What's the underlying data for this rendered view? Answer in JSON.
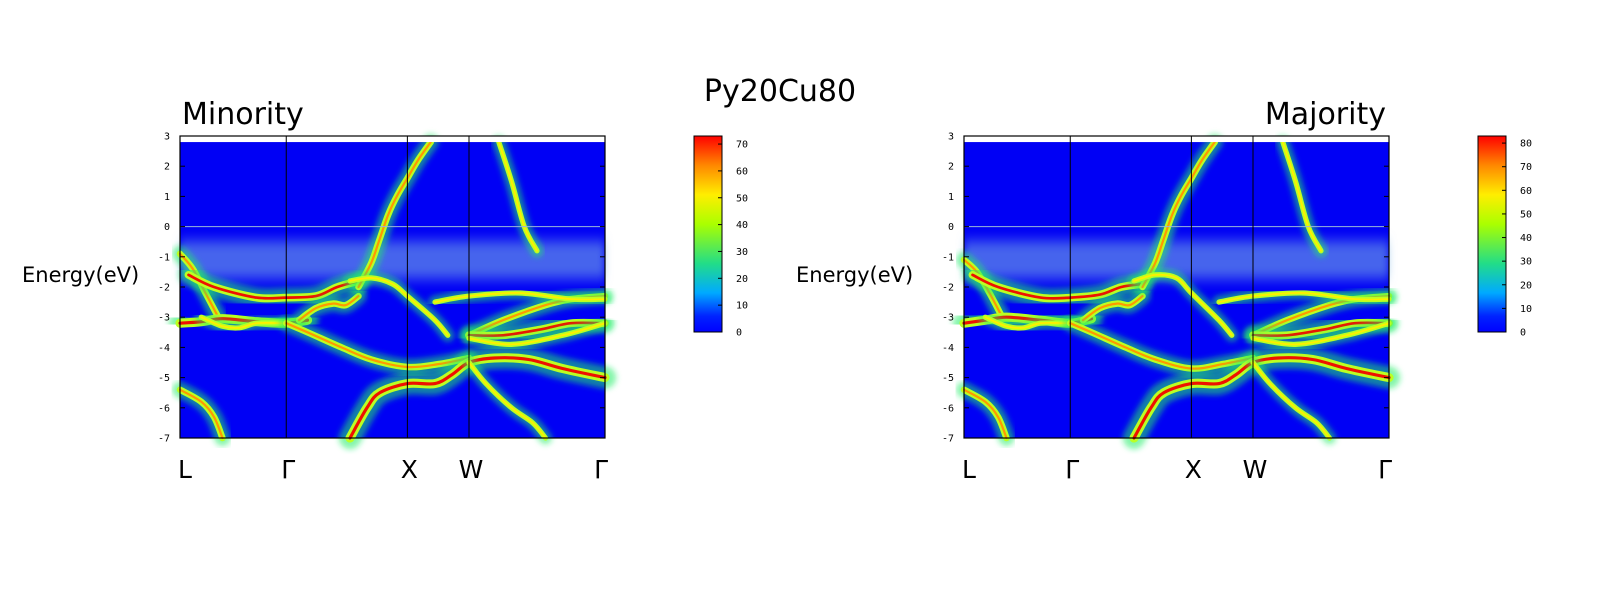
{
  "figure": {
    "title": "Py20Cu80"
  },
  "chart_data": [
    {
      "type": "heatmap",
      "title": "Minority",
      "title_align": "left",
      "ylabel": "Energy(eV)",
      "ylim": [
        -7,
        3
      ],
      "yticks": [
        "3",
        "2",
        "1",
        "0",
        "-1",
        "-2",
        "-3",
        "-4",
        "-5",
        "-6",
        "-7"
      ],
      "x_labels": [
        "L",
        "Γ",
        "X",
        "W",
        "Γ"
      ],
      "x_label_positions": [
        0,
        0.25,
        0.535,
        0.68,
        1
      ],
      "fermi_level": 0,
      "colorbar": {
        "min": 0,
        "max": 73,
        "ticks": [
          "70",
          "60",
          "50",
          "40",
          "30",
          "20",
          "10",
          "0"
        ]
      },
      "bands": [
        {
          "x": [
            0,
            0.03,
            0.06,
            0.09
          ],
          "y": [
            -0.9,
            -1.4,
            -2.2,
            -3.0
          ],
          "w": 5
        },
        {
          "x": [
            0.02,
            0.08,
            0.18,
            0.25,
            0.32,
            0.37,
            0.42
          ],
          "y": [
            -1.6,
            -2.0,
            -2.35,
            -2.35,
            -2.3,
            -2.0,
            -1.8
          ],
          "w": 6
        },
        {
          "x": [
            0,
            0.05,
            0.1,
            0.18,
            0.25,
            0.3
          ],
          "y": [
            -3.2,
            -3.15,
            -3.05,
            -3.15,
            -3.2,
            -3.1
          ],
          "w": 7
        },
        {
          "x": [
            0.05,
            0.1,
            0.14,
            0.18,
            0.24
          ],
          "y": [
            -3.0,
            -3.3,
            -3.35,
            -3.2,
            -3.2
          ],
          "w": 4
        },
        {
          "x": [
            0.28,
            0.32,
            0.36,
            0.39,
            0.42
          ],
          "y": [
            -3.1,
            -2.7,
            -2.55,
            -2.6,
            -2.3
          ],
          "w": 5
        },
        {
          "x": [
            0.42,
            0.45,
            0.47,
            0.49,
            0.51,
            0.535,
            0.56,
            0.59
          ],
          "y": [
            -2.0,
            -1.2,
            -0.4,
            0.4,
            1.0,
            1.6,
            2.2,
            2.8
          ],
          "w": 5
        },
        {
          "x": [
            0.25,
            0.3,
            0.38,
            0.45,
            0.535,
            0.61,
            0.68
          ],
          "y": [
            -3.2,
            -3.5,
            -4.0,
            -4.4,
            -4.65,
            -4.55,
            -4.35
          ],
          "w": 5
        },
        {
          "x": [
            0.4,
            0.45,
            0.5,
            0.535,
            0.6,
            0.63
          ],
          "y": [
            -1.8,
            -1.7,
            -1.9,
            -2.3,
            -3.1,
            -3.6
          ],
          "w": 4
        },
        {
          "x": [
            0.4,
            0.44,
            0.47,
            0.535,
            0.6,
            0.64,
            0.68,
            0.74,
            0.82,
            0.9,
            1.0
          ],
          "y": [
            -7.0,
            -6.0,
            -5.5,
            -5.2,
            -5.2,
            -4.9,
            -4.5,
            -4.35,
            -4.4,
            -4.7,
            -5.0
          ],
          "w": 7
        },
        {
          "x": [
            0.68,
            0.72,
            0.78,
            0.83,
            0.86
          ],
          "y": [
            -4.5,
            -5.2,
            -6.0,
            -6.5,
            -7.0
          ],
          "w": 4
        },
        {
          "x": [
            0.68,
            0.76,
            0.86,
            0.92,
            1.0
          ],
          "y": [
            -3.6,
            -3.1,
            -2.6,
            -2.4,
            -2.3
          ],
          "w": 5
        },
        {
          "x": [
            0.68,
            0.76,
            0.85,
            0.92,
            1.0
          ],
          "y": [
            -3.6,
            -3.6,
            -3.4,
            -3.2,
            -3.2
          ],
          "w": 6
        },
        {
          "x": [
            0.6,
            0.68,
            0.8,
            0.92,
            1.0
          ],
          "y": [
            -2.5,
            -2.3,
            -2.2,
            -2.4,
            -2.4
          ],
          "w": 4
        },
        {
          "x": [
            0.68,
            0.78,
            0.9,
            1.0
          ],
          "y": [
            -3.7,
            -3.9,
            -3.6,
            -3.2
          ],
          "w": 4
        },
        {
          "x": [
            0.75,
            0.78,
            0.81,
            0.84
          ],
          "y": [
            2.8,
            1.5,
            0.0,
            -0.8
          ],
          "w": 4
        },
        {
          "x": [
            0,
            0.05,
            0.08,
            0.1
          ],
          "y": [
            -5.4,
            -5.8,
            -6.3,
            -7.0
          ],
          "w": 5
        }
      ]
    },
    {
      "type": "heatmap",
      "title": "Majority",
      "title_align": "right",
      "ylabel": "Energy(eV)",
      "ylim": [
        -7,
        3
      ],
      "yticks": [
        "3",
        "2",
        "1",
        "0",
        "-1",
        "-2",
        "-3",
        "-4",
        "-5",
        "-6",
        "-7"
      ],
      "x_labels": [
        "L",
        "Γ",
        "X",
        "W",
        "Γ"
      ],
      "x_label_positions": [
        0,
        0.25,
        0.535,
        0.68,
        1
      ],
      "fermi_level": 0,
      "colorbar": {
        "min": 0,
        "max": 83,
        "ticks": [
          "80",
          "70",
          "60",
          "50",
          "40",
          "30",
          "20",
          "10",
          "0"
        ]
      },
      "bands": [
        {
          "x": [
            0,
            0.03,
            0.06,
            0.09
          ],
          "y": [
            -1.1,
            -1.5,
            -2.2,
            -3.0
          ],
          "w": 5
        },
        {
          "x": [
            0.02,
            0.08,
            0.18,
            0.25,
            0.32,
            0.37,
            0.42
          ],
          "y": [
            -1.6,
            -2.0,
            -2.35,
            -2.35,
            -2.25,
            -2.0,
            -1.9
          ],
          "w": 6
        },
        {
          "x": [
            0,
            0.05,
            0.1,
            0.18,
            0.25,
            0.3
          ],
          "y": [
            -3.2,
            -3.1,
            -3.0,
            -3.1,
            -3.2,
            -3.05
          ],
          "w": 7
        },
        {
          "x": [
            0.05,
            0.1,
            0.14,
            0.18,
            0.24
          ],
          "y": [
            -3.0,
            -3.3,
            -3.35,
            -3.2,
            -3.2
          ],
          "w": 4
        },
        {
          "x": [
            0.28,
            0.32,
            0.36,
            0.39,
            0.42
          ],
          "y": [
            -3.1,
            -2.7,
            -2.55,
            -2.6,
            -2.3
          ],
          "w": 5
        },
        {
          "x": [
            0.42,
            0.45,
            0.47,
            0.49,
            0.51,
            0.535,
            0.56,
            0.59
          ],
          "y": [
            -2.0,
            -1.2,
            -0.4,
            0.4,
            1.0,
            1.6,
            2.2,
            2.8
          ],
          "w": 5
        },
        {
          "x": [
            0.25,
            0.3,
            0.38,
            0.45,
            0.535,
            0.61,
            0.68
          ],
          "y": [
            -3.2,
            -3.5,
            -4.0,
            -4.4,
            -4.7,
            -4.55,
            -4.35
          ],
          "w": 5
        },
        {
          "x": [
            0.4,
            0.45,
            0.5,
            0.535,
            0.6,
            0.63
          ],
          "y": [
            -1.8,
            -1.6,
            -1.7,
            -2.2,
            -3.1,
            -3.6
          ],
          "w": 4
        },
        {
          "x": [
            0.4,
            0.44,
            0.47,
            0.535,
            0.6,
            0.64,
            0.68,
            0.74,
            0.82,
            0.9,
            1.0
          ],
          "y": [
            -7.0,
            -6.0,
            -5.5,
            -5.2,
            -5.2,
            -4.9,
            -4.5,
            -4.35,
            -4.4,
            -4.7,
            -5.0
          ],
          "w": 7
        },
        {
          "x": [
            0.68,
            0.72,
            0.78,
            0.83,
            0.86
          ],
          "y": [
            -4.5,
            -5.2,
            -6.0,
            -6.5,
            -7.0
          ],
          "w": 4
        },
        {
          "x": [
            0.68,
            0.76,
            0.86,
            0.92,
            1.0
          ],
          "y": [
            -3.6,
            -3.1,
            -2.6,
            -2.4,
            -2.3
          ],
          "w": 5
        },
        {
          "x": [
            0.68,
            0.76,
            0.85,
            0.92,
            1.0
          ],
          "y": [
            -3.6,
            -3.6,
            -3.4,
            -3.2,
            -3.2
          ],
          "w": 6
        },
        {
          "x": [
            0.6,
            0.68,
            0.8,
            0.92,
            1.0
          ],
          "y": [
            -2.5,
            -2.3,
            -2.2,
            -2.4,
            -2.4
          ],
          "w": 4
        },
        {
          "x": [
            0.68,
            0.78,
            0.9,
            1.0
          ],
          "y": [
            -3.7,
            -3.9,
            -3.6,
            -3.2
          ],
          "w": 4
        },
        {
          "x": [
            0.75,
            0.78,
            0.81,
            0.84
          ],
          "y": [
            2.8,
            1.5,
            0.0,
            -0.8
          ],
          "w": 4
        },
        {
          "x": [
            0,
            0.05,
            0.08,
            0.1
          ],
          "y": [
            -5.4,
            -5.8,
            -6.3,
            -7.0
          ],
          "w": 5
        }
      ]
    }
  ]
}
